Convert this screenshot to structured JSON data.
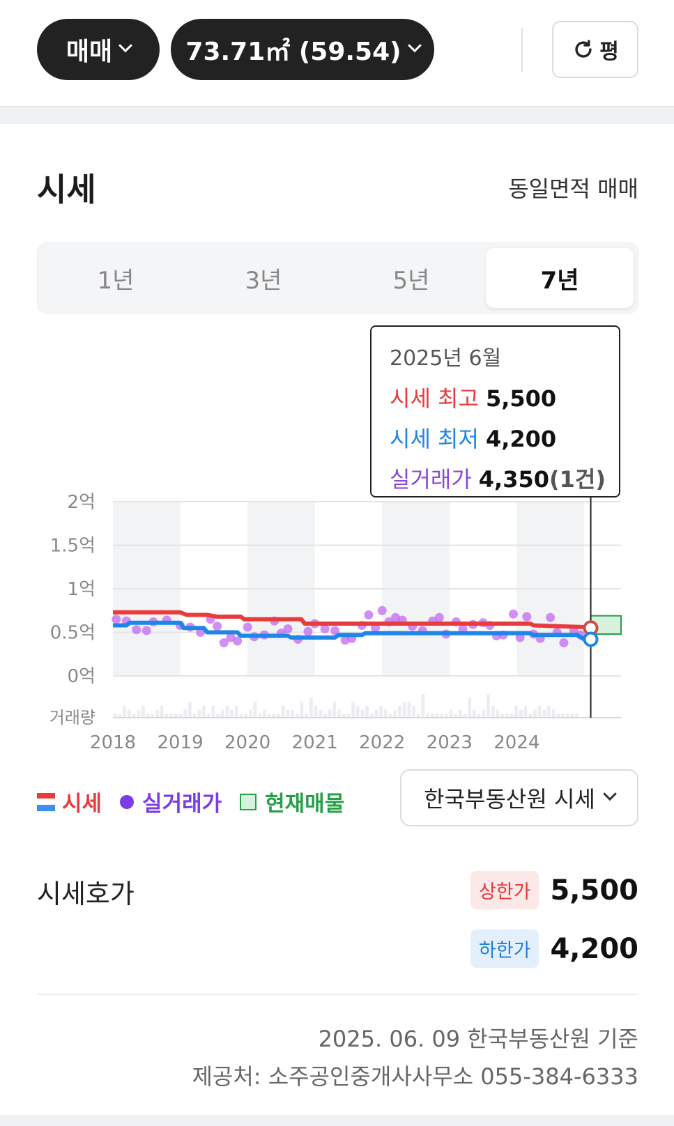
{
  "filters": {
    "deal_type": "매매",
    "area": "73.71㎡ (59.54)",
    "unit_toggle": "평"
  },
  "section": {
    "title": "시세",
    "subtitle": "동일면적 매매"
  },
  "period_tabs": [
    {
      "label": "1년",
      "active": false
    },
    {
      "label": "3년",
      "active": false
    },
    {
      "label": "5년",
      "active": false
    },
    {
      "label": "7년",
      "active": true
    }
  ],
  "tooltip": {
    "date": "2025년 6월",
    "max_label": "시세 최고",
    "max_value": "5,500",
    "min_label": "시세 최저",
    "min_value": "4,200",
    "deal_label": "실거래가",
    "deal_value": "4,350",
    "deal_count": "(1건)"
  },
  "legend": {
    "price": "시세",
    "deal": "실거래가",
    "listing": "현재매물"
  },
  "source_select": "한국부동산원 시세",
  "hoga": {
    "label": "시세호가",
    "upper_badge": "상한가",
    "upper_value": "5,500",
    "lower_badge": "하한가",
    "lower_value": "4,200"
  },
  "footer": {
    "basis": "2025. 06. 09 한국부동산원 기준",
    "provider": "제공처: 소주공인중개사사무소 055-384-6333"
  },
  "colors": {
    "upper": "#e83c3c",
    "lower": "#1e86e6",
    "deal": "#c26af0",
    "listing_fill": "#d6f2dd",
    "listing_stroke": "#26a048"
  },
  "chart_data": {
    "type": "line",
    "y_unit": "만원",
    "ylim": [
      0,
      20000
    ],
    "y_ticks": [
      {
        "value": 20000,
        "label": "2억"
      },
      {
        "value": 15000,
        "label": "1.5억"
      },
      {
        "value": 10000,
        "label": "1억"
      },
      {
        "value": 5000,
        "label": "0.5억"
      },
      {
        "value": 0,
        "label": "0억"
      }
    ],
    "volume_label": "거래량",
    "x_ticks": [
      "2018",
      "2019",
      "2020",
      "2021",
      "2022",
      "2023",
      "2024"
    ],
    "xlim": [
      2018.0,
      2025.55
    ],
    "series": [
      {
        "name": "시세 최고",
        "color": "#e83c3c",
        "points": [
          [
            2018.0,
            7300
          ],
          [
            2019.0,
            7300
          ],
          [
            2019.1,
            7000
          ],
          [
            2019.4,
            7000
          ],
          [
            2019.55,
            6800
          ],
          [
            2019.9,
            6800
          ],
          [
            2019.95,
            6500
          ],
          [
            2020.8,
            6500
          ],
          [
            2020.85,
            6000
          ],
          [
            2021.6,
            6000
          ],
          [
            2021.65,
            6000
          ],
          [
            2024.2,
            6000
          ],
          [
            2024.25,
            5800
          ],
          [
            2025.0,
            5600
          ],
          [
            2025.1,
            5500
          ]
        ]
      },
      {
        "name": "시세 최저",
        "color": "#1e86e6",
        "points": [
          [
            2018.0,
            5800
          ],
          [
            2018.2,
            5800
          ],
          [
            2018.25,
            6100
          ],
          [
            2019.0,
            6100
          ],
          [
            2019.05,
            5500
          ],
          [
            2019.35,
            5500
          ],
          [
            2019.4,
            5000
          ],
          [
            2019.85,
            5000
          ],
          [
            2019.9,
            4600
          ],
          [
            2020.6,
            4600
          ],
          [
            2020.65,
            4400
          ],
          [
            2021.3,
            4400
          ],
          [
            2021.35,
            4700
          ],
          [
            2021.7,
            4700
          ],
          [
            2021.75,
            4900
          ],
          [
            2024.2,
            4900
          ],
          [
            2024.25,
            4700
          ],
          [
            2024.9,
            4700
          ],
          [
            2025.0,
            4200
          ],
          [
            2025.1,
            4200
          ]
        ]
      }
    ],
    "deals": [
      [
        2018.05,
        6500
      ],
      [
        2018.2,
        6300
      ],
      [
        2018.35,
        5300
      ],
      [
        2018.5,
        5200
      ],
      [
        2018.6,
        6200
      ],
      [
        2018.8,
        6400
      ],
      [
        2019.0,
        5800
      ],
      [
        2019.15,
        5600
      ],
      [
        2019.3,
        5000
      ],
      [
        2019.45,
        6500
      ],
      [
        2019.55,
        5700
      ],
      [
        2019.65,
        3800
      ],
      [
        2019.75,
        4400
      ],
      [
        2019.85,
        4000
      ],
      [
        2020.0,
        5600
      ],
      [
        2020.1,
        4500
      ],
      [
        2020.25,
        4700
      ],
      [
        2020.4,
        6300
      ],
      [
        2020.5,
        4900
      ],
      [
        2020.6,
        5400
      ],
      [
        2020.75,
        4200
      ],
      [
        2020.9,
        5100
      ],
      [
        2021.0,
        6000
      ],
      [
        2021.15,
        5400
      ],
      [
        2021.3,
        5200
      ],
      [
        2021.45,
        4100
      ],
      [
        2021.55,
        4300
      ],
      [
        2021.7,
        5800
      ],
      [
        2021.8,
        7000
      ],
      [
        2021.9,
        5500
      ],
      [
        2022.0,
        7500
      ],
      [
        2022.1,
        6200
      ],
      [
        2022.2,
        6700
      ],
      [
        2022.3,
        6400
      ],
      [
        2022.45,
        5700
      ],
      [
        2022.6,
        5200
      ],
      [
        2022.75,
        6300
      ],
      [
        2022.85,
        6700
      ],
      [
        2022.95,
        4800
      ],
      [
        2023.1,
        6200
      ],
      [
        2023.2,
        5400
      ],
      [
        2023.35,
        5900
      ],
      [
        2023.5,
        6100
      ],
      [
        2023.6,
        5800
      ],
      [
        2023.7,
        4600
      ],
      [
        2023.8,
        4700
      ],
      [
        2023.95,
        7100
      ],
      [
        2024.05,
        4400
      ],
      [
        2024.15,
        6800
      ],
      [
        2024.25,
        4800
      ],
      [
        2024.35,
        4300
      ],
      [
        2024.5,
        6700
      ],
      [
        2024.6,
        5000
      ],
      [
        2024.7,
        3800
      ],
      [
        2024.85,
        5100
      ],
      [
        2024.95,
        4700
      ],
      [
        2025.05,
        4350
      ]
    ],
    "volume": [
      1,
      1,
      3,
      2,
      1,
      2,
      3,
      1,
      1,
      2,
      3,
      1,
      1,
      1,
      1,
      2,
      4,
      1,
      2,
      3,
      1,
      3,
      1,
      2,
      3,
      2,
      3,
      1,
      1,
      2,
      4,
      1,
      2,
      1,
      1,
      1,
      3,
      2,
      2,
      1,
      4,
      1,
      5,
      3,
      2,
      1,
      2,
      4,
      2,
      1,
      1,
      4,
      3,
      2,
      3,
      1,
      2,
      3,
      2,
      1,
      2,
      3,
      4,
      4,
      3,
      1,
      6,
      1,
      1,
      1,
      1,
      1,
      2,
      1,
      2,
      1,
      5,
      2,
      1,
      2,
      6,
      3,
      2,
      1,
      1,
      1,
      3,
      2,
      3,
      1,
      2,
      3,
      2,
      3,
      2,
      1,
      1,
      1,
      1,
      1
    ],
    "listing_range": {
      "x": [
        2025.1,
        2025.55
      ],
      "y": [
        4800,
        6900
      ]
    },
    "highlight_x": 2025.1,
    "shaded_years": [
      2018,
      2020,
      2022,
      2024
    ],
    "grid": true
  }
}
